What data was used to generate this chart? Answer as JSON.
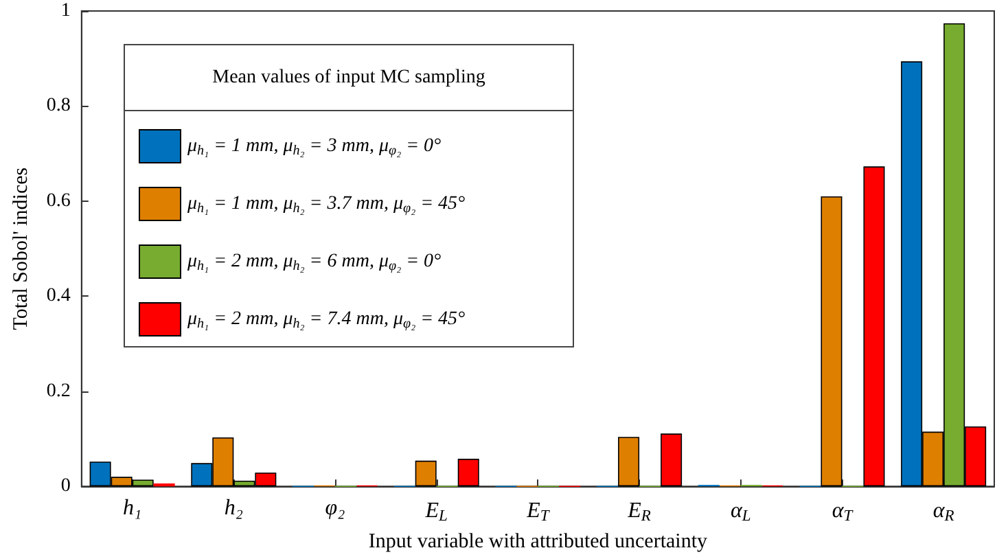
{
  "chart_data": {
    "type": "bar",
    "xlabel": "Input variable with attributed uncertainty",
    "ylabel": "Total Sobol' indices",
    "legend_title": "Mean values of input MC sampling",
    "categories": [
      "h₁",
      "h₂",
      "φ₂",
      "E$_{L}$",
      "E$_{T}$",
      "E$_{R}$",
      "α$_{L}$",
      "α$_{T}$",
      "α$_{R}$"
    ],
    "series": [
      {
        "name": "μ$_{h₁}$ = 1 mm, μ$_{h₂}$ = 3 mm, μ$_{φ₂}$ = 0°",
        "color": "#0072bd",
        "values": [
          0.052,
          0.049,
          0,
          0,
          0,
          0,
          0.003,
          0,
          0.894
        ]
      },
      {
        "name": "μ$_{h₁}$ = 1 mm, μ$_{h₂}$ = 3.7 mm, μ$_{φ₂}$ = 45°",
        "color": "#df7f00",
        "values": [
          0.02,
          0.103,
          0.002,
          0.054,
          0,
          0.104,
          0.002,
          0.61,
          0.115
        ]
      },
      {
        "name": "μ$_{h₁}$ = 2 mm, μ$_{h₂}$ = 6 mm, μ$_{φ₂}$ = 0°",
        "color": "#77ac30",
        "values": [
          0.014,
          0.012,
          0,
          0,
          0,
          0,
          0.003,
          0,
          0.974
        ]
      },
      {
        "name": "μ$_{h₁}$ = 2 mm, μ$_{h₂}$ = 7.4 mm, μ$_{φ₂}$ = 45°",
        "color": "#ff0000",
        "values": [
          0.006,
          0.029,
          0.002,
          0.058,
          0,
          0.111,
          0.002,
          0.673,
          0.126
        ]
      }
    ],
    "ylim": [
      0,
      1
    ],
    "yticks": [
      0,
      0.2,
      0.4,
      0.6,
      0.8,
      1
    ],
    "grid": false,
    "legend": "top left"
  }
}
